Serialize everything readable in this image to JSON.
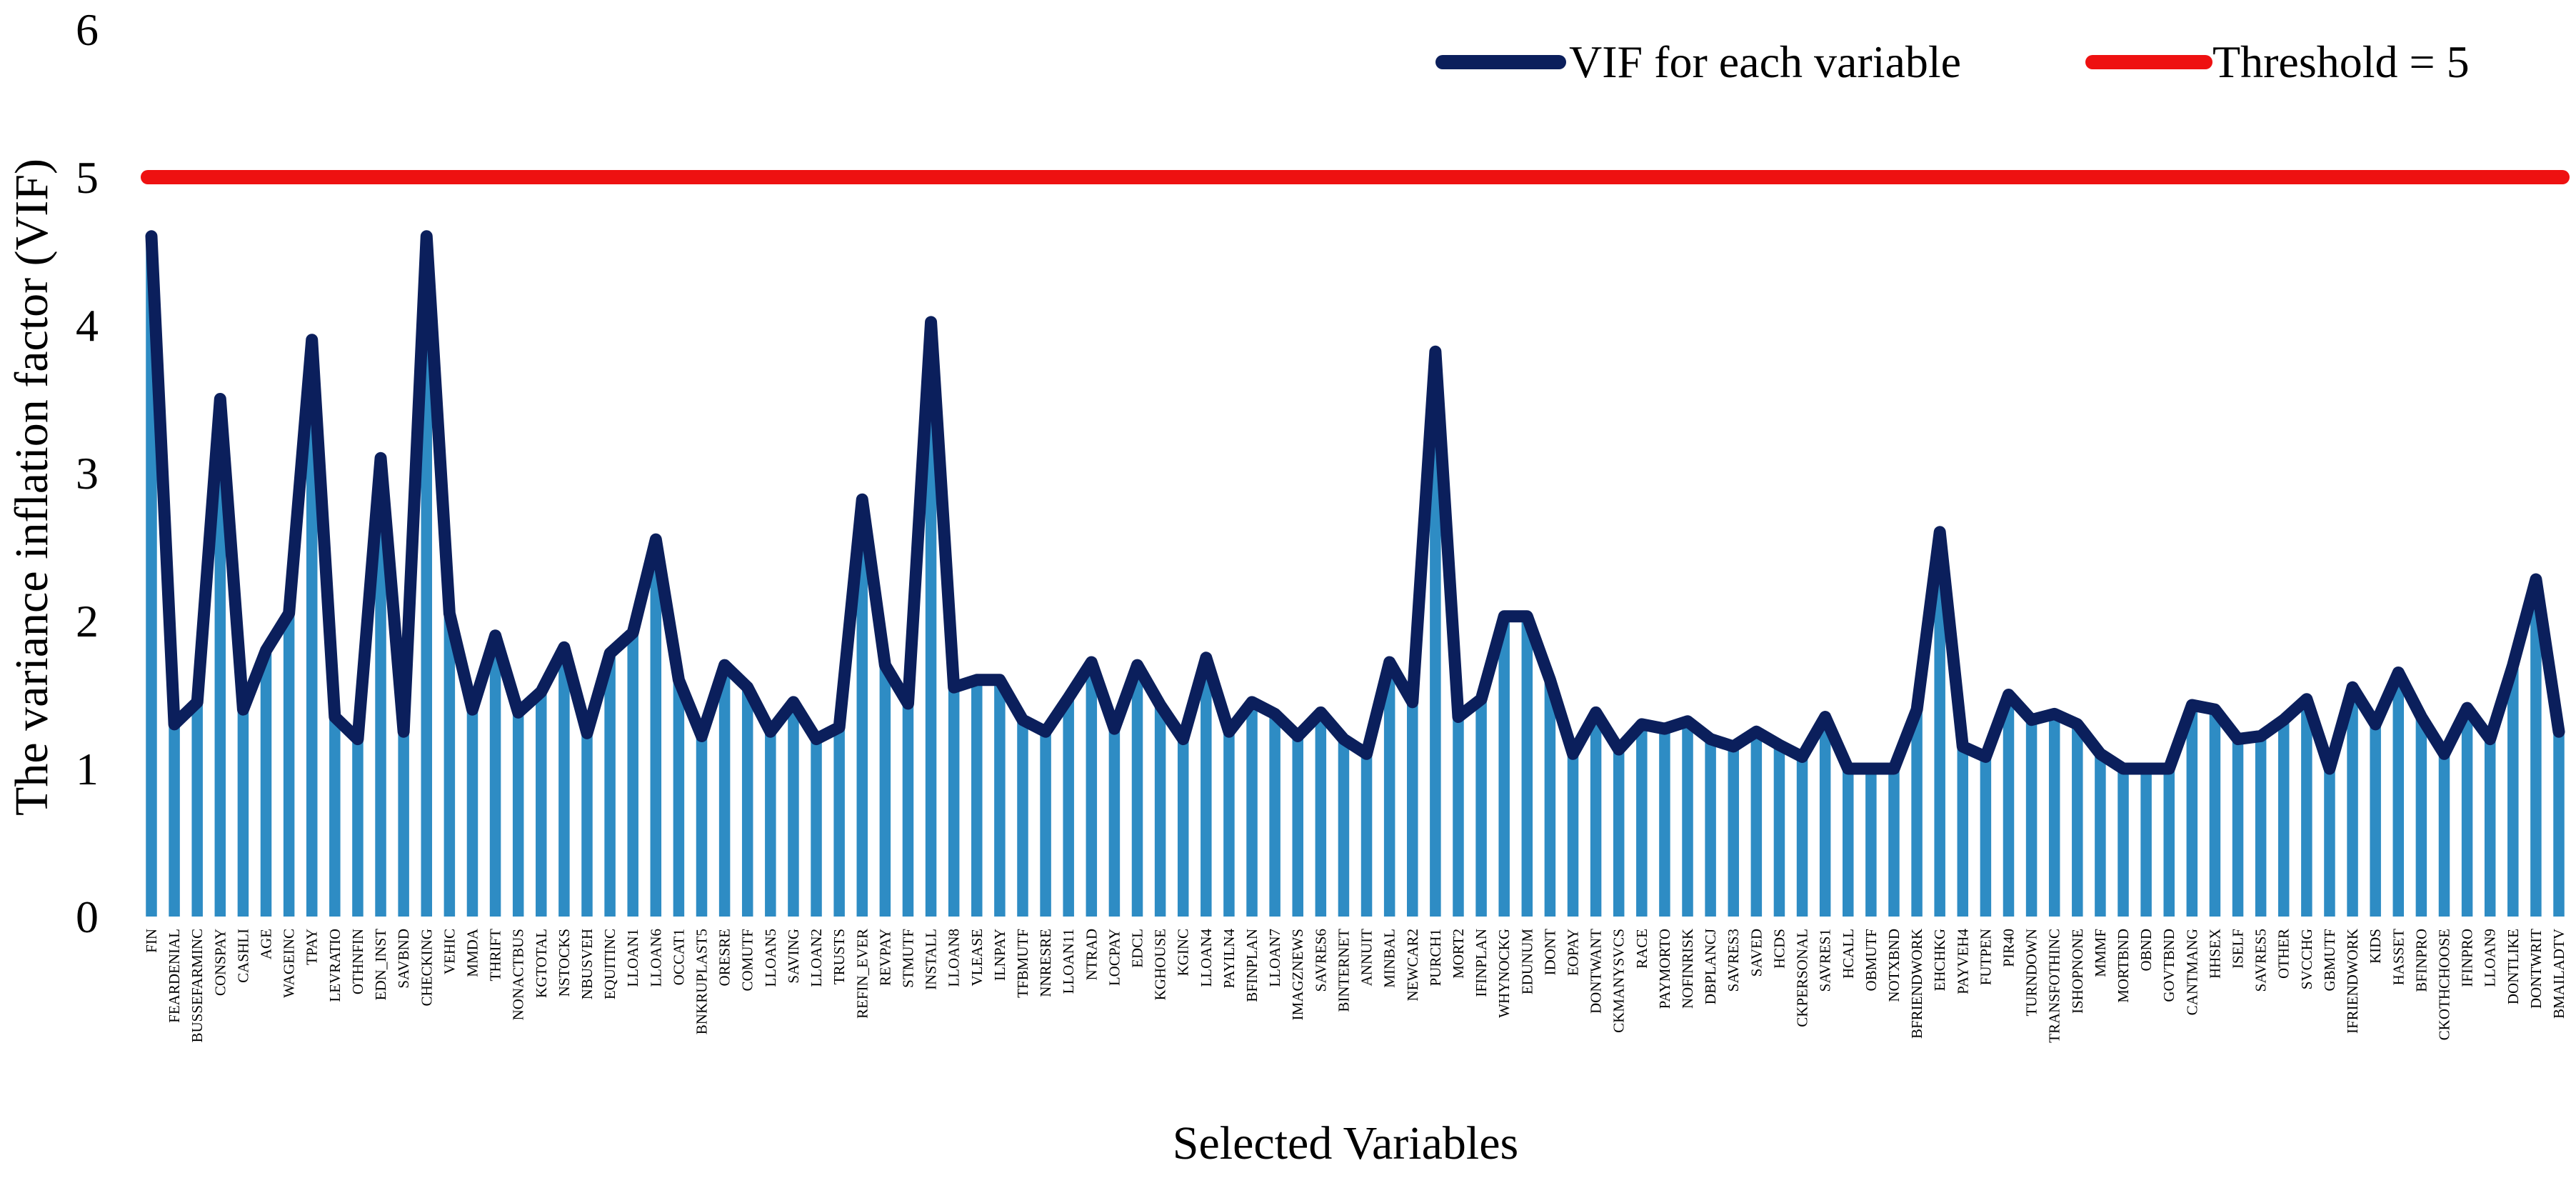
{
  "chart_data": {
    "type": "bar",
    "title": "",
    "xlabel": "Selected Variables",
    "ylabel": "The variance inflation factor (VIF)",
    "ylim": [
      0,
      6
    ],
    "yticks": [
      "0",
      "1",
      "2",
      "3",
      "4",
      "5",
      "6"
    ],
    "grid": false,
    "legend_position": "top-right",
    "colors": {
      "bar": "#2e8cc4",
      "line": "#0b1f5c",
      "threshold": "#ee1111"
    },
    "legend": {
      "line_label": "VIF for each variable",
      "threshold_label": "Threshold = 5"
    },
    "threshold": 5,
    "categories": [
      "FIN",
      "FEARDENIAL",
      "BUSSEFARMINC",
      "CONSPAY",
      "CASHLI",
      "AGE",
      "WAGEINC",
      "TPAY",
      "LEVRATIO",
      "OTHNFIN",
      "EDN_INST",
      "SAVBND",
      "CHECKING",
      "VEHIC",
      "MMDA",
      "THRIFT",
      "NONACTBUS",
      "KGTOTAL",
      "NSTOCKS",
      "NBUSVEH",
      "EQUITINC",
      "LLOAN1",
      "LLOAN6",
      "OCCAT1",
      "BNKRUPLAST5",
      "ORESRE",
      "COMUTF",
      "LLOAN5",
      "SAVING",
      "LLOAN2",
      "TRUSTS",
      "REFIN_EVER",
      "REVPAY",
      "STMUTF",
      "INSTALL",
      "LLOAN8",
      "VLEASE",
      "ILNPAY",
      "TFBMUTF",
      "NNRESRE",
      "LLOAN11",
      "NTRAD",
      "LOCPAY",
      "EDCL",
      "KGHOUSE",
      "KGINC",
      "LLOAN4",
      "PAYILN4",
      "BFINPLAN",
      "LLOAN7",
      "IMAGZNEWS",
      "SAVRES6",
      "BINTERNET",
      "ANNUIT",
      "MINBAL",
      "NEWCAR2",
      "PURCH1",
      "MORT2",
      "IFINPLAN",
      "WHYNOCKG",
      "EDUNUM",
      "IDONT",
      "EOPAY",
      "DONTWANT",
      "CKMANYSVCS",
      "RACE",
      "PAYMORTO",
      "NOFINRISK",
      "DBPLANCJ",
      "SAVRES3",
      "SAVED",
      "HCDS",
      "CKPERSONAL",
      "SAVRES1",
      "HCALL",
      "OBMUTF",
      "NOTXBND",
      "BFRIENDWORK",
      "EHCHKG",
      "PAYVEH4",
      "FUTPEN",
      "PIR40",
      "TURNDOWN",
      "TRANSFOTHINC",
      "ISHOPNONE",
      "MMMF",
      "MORTBND",
      "OBND",
      "GOVTBND",
      "CANTMANG",
      "HHSEX",
      "ISELF",
      "SAVRES5",
      "OTHER",
      "SVCCHG",
      "GBMUTF",
      "IFRIENDWORK",
      "KIDS",
      "HASSET",
      "BFINPRO",
      "CKOTHCHOOSE",
      "IFINPRO",
      "LLOAN9",
      "DONTLIKE",
      "DONTWRIT",
      "BMAILADTV"
    ],
    "series": [
      {
        "name": "VIF for each variable",
        "values": [
          4.6,
          1.3,
          1.45,
          3.5,
          1.4,
          1.8,
          2.05,
          3.9,
          1.35,
          1.2,
          3.1,
          1.25,
          4.6,
          2.05,
          1.4,
          1.9,
          1.38,
          1.52,
          1.82,
          1.24,
          1.78,
          1.92,
          2.55,
          1.6,
          1.22,
          1.7,
          1.55,
          1.25,
          1.45,
          1.2,
          1.28,
          2.82,
          1.7,
          1.44,
          4.02,
          1.55,
          1.6,
          1.6,
          1.33,
          1.25,
          1.48,
          1.72,
          1.27,
          1.7,
          1.43,
          1.2,
          1.75,
          1.25,
          1.45,
          1.37,
          1.22,
          1.38,
          1.2,
          1.1,
          1.72,
          1.45,
          3.82,
          1.35,
          1.47,
          2.03,
          2.03,
          1.6,
          1.1,
          1.38,
          1.13,
          1.3,
          1.27,
          1.32,
          1.2,
          1.15,
          1.25,
          1.16,
          1.08,
          1.35,
          1.0,
          1.0,
          1.0,
          1.4,
          2.6,
          1.15,
          1.08,
          1.5,
          1.33,
          1.37,
          1.3,
          1.1,
          1.0,
          1.0,
          1.0,
          1.43,
          1.4,
          1.2,
          1.22,
          1.33,
          1.47,
          1.0,
          1.55,
          1.3,
          1.65,
          1.35,
          1.1,
          1.41,
          1.2,
          1.7,
          2.28,
          1.25
        ]
      }
    ]
  }
}
